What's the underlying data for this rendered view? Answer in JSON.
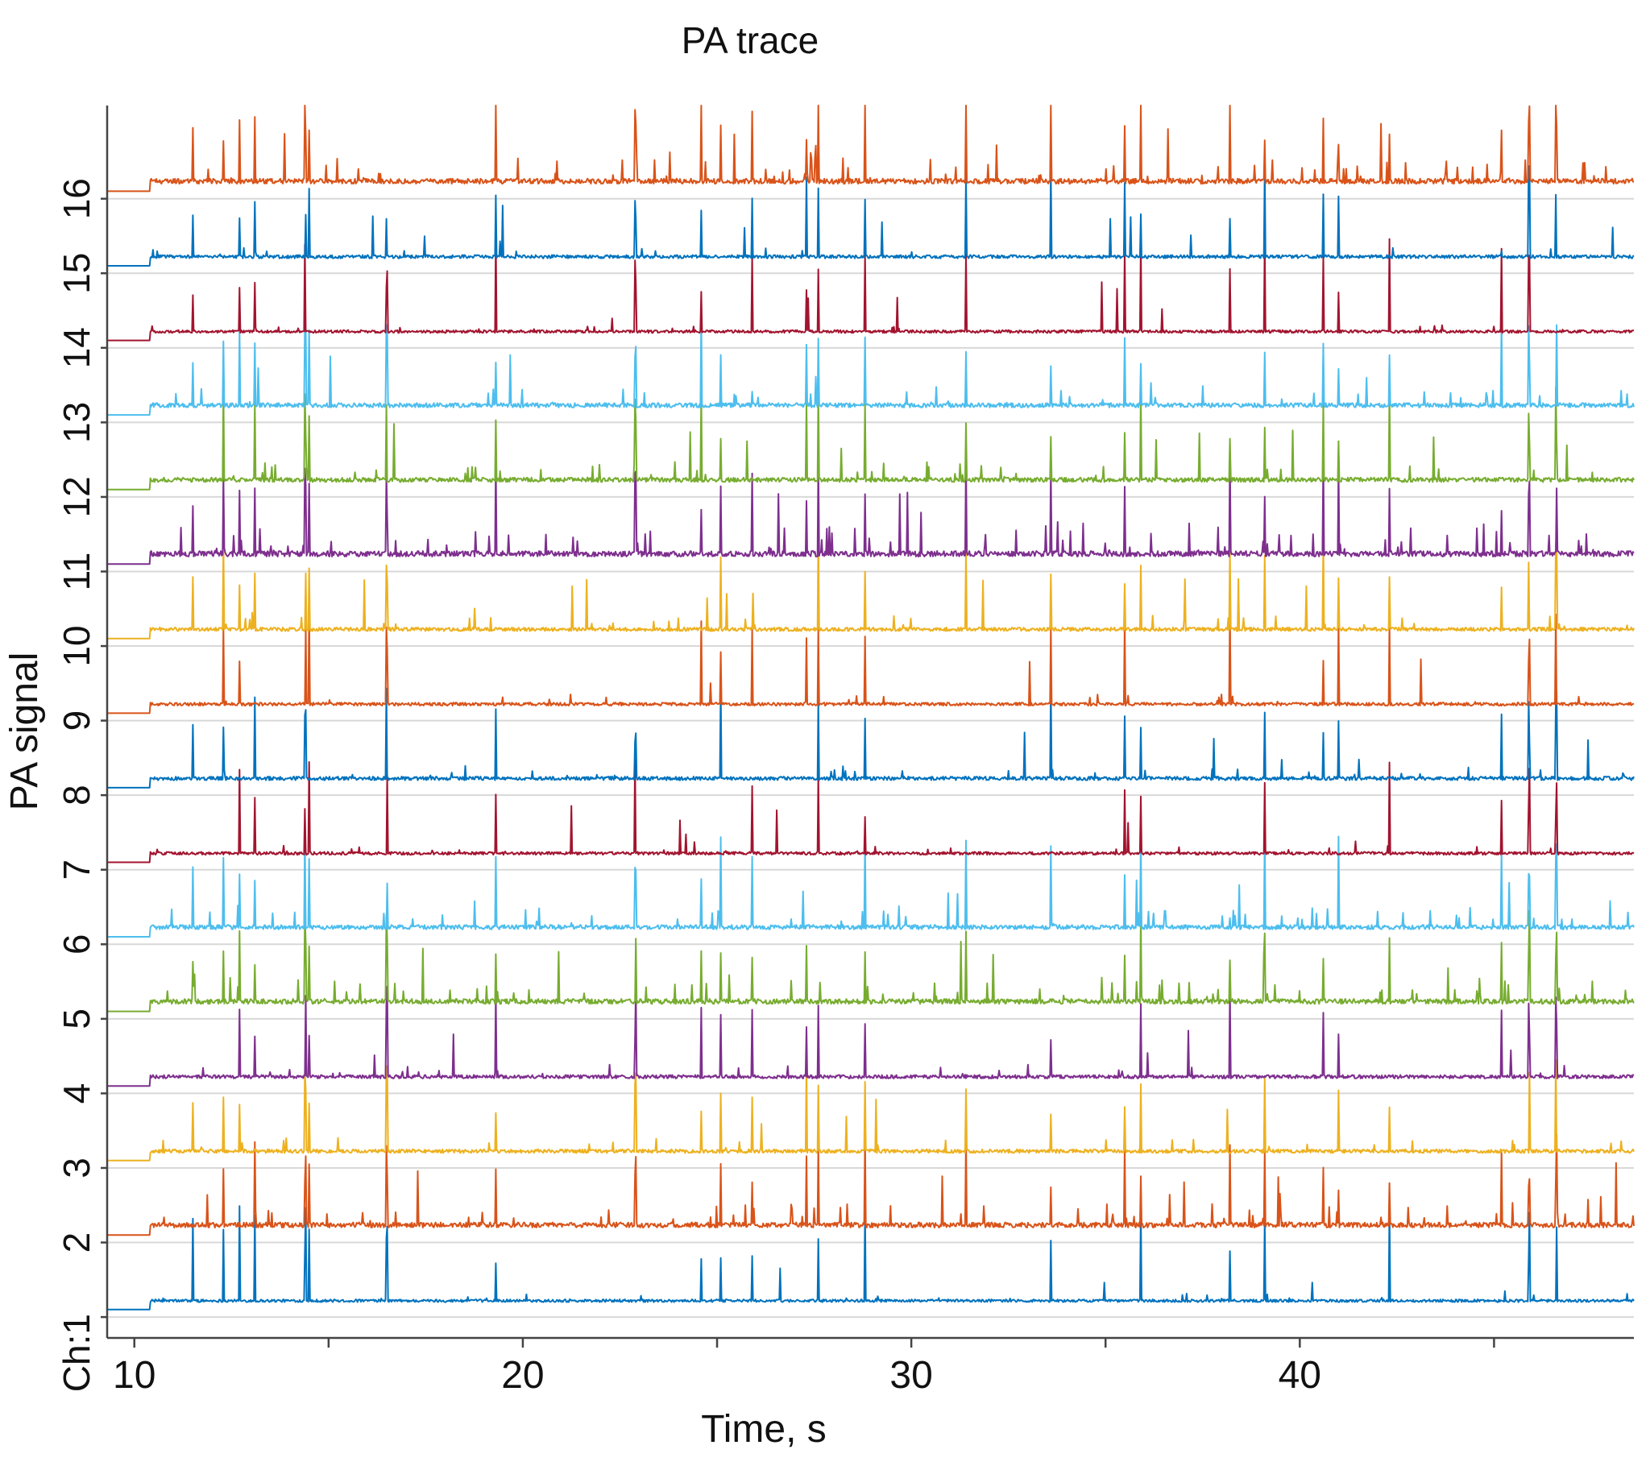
{
  "chart_data": {
    "type": "line",
    "title": "PA trace",
    "xlabel": "Time, s",
    "ylabel": "PA signal",
    "xlim": [
      9.3,
      48.6
    ],
    "ylim": [
      0.72,
      17.25
    ],
    "x_ticks": [
      10,
      15,
      20,
      25,
      30,
      35,
      40,
      45
    ],
    "x_tick_labels": [
      "10",
      "",
      "20",
      "",
      "30",
      "",
      "40",
      ""
    ],
    "y_ticks": [
      1,
      2,
      3,
      4,
      5,
      6,
      7,
      8,
      9,
      10,
      11,
      12,
      13,
      14,
      15,
      16
    ],
    "y_tick_labels": [
      "Ch:1",
      "2",
      "3",
      "4",
      "5",
      "6",
      "7",
      "8",
      "9",
      "10",
      "11",
      "12",
      "13",
      "14",
      "15",
      "16"
    ],
    "grid": "horizontal at each channel",
    "legend": "none",
    "stimulus_onset_s": 10.4,
    "common_spike_times_s": [
      11.5,
      12.3,
      12.7,
      13.1,
      14.4,
      14.5,
      16.5,
      19.3,
      22.9,
      24.6,
      25.1,
      25.9,
      27.3,
      27.6,
      28.8,
      31.4,
      33.6,
      35.5,
      35.9,
      38.2,
      39.1,
      40.6,
      41.0,
      42.3,
      45.2,
      45.9,
      46.6
    ],
    "series": [
      {
        "channel": 1,
        "color": "#0072BD",
        "activity": 0.25
      },
      {
        "channel": 2,
        "color": "#D95319",
        "activity": 0.9
      },
      {
        "channel": 3,
        "color": "#EDB120",
        "activity": 0.5
      },
      {
        "channel": 4,
        "color": "#7E2F8E",
        "activity": 0.45
      },
      {
        "channel": 5,
        "color": "#77AC30",
        "activity": 0.85
      },
      {
        "channel": 6,
        "color": "#4DBEEE",
        "activity": 0.7
      },
      {
        "channel": 7,
        "color": "#A2142F",
        "activity": 0.3
      },
      {
        "channel": 8,
        "color": "#0072BD",
        "activity": 0.5
      },
      {
        "channel": 9,
        "color": "#D95319",
        "activity": 0.35
      },
      {
        "channel": 10,
        "color": "#EDB120",
        "activity": 0.5
      },
      {
        "channel": 11,
        "color": "#7E2F8E",
        "activity": 1.0
      },
      {
        "channel": 12,
        "color": "#77AC30",
        "activity": 0.7
      },
      {
        "channel": 13,
        "color": "#4DBEEE",
        "activity": 0.7
      },
      {
        "channel": 14,
        "color": "#A2142F",
        "activity": 0.25
      },
      {
        "channel": 15,
        "color": "#0072BD",
        "activity": 0.4
      },
      {
        "channel": 16,
        "color": "#D95319",
        "activity": 0.9
      }
    ]
  }
}
